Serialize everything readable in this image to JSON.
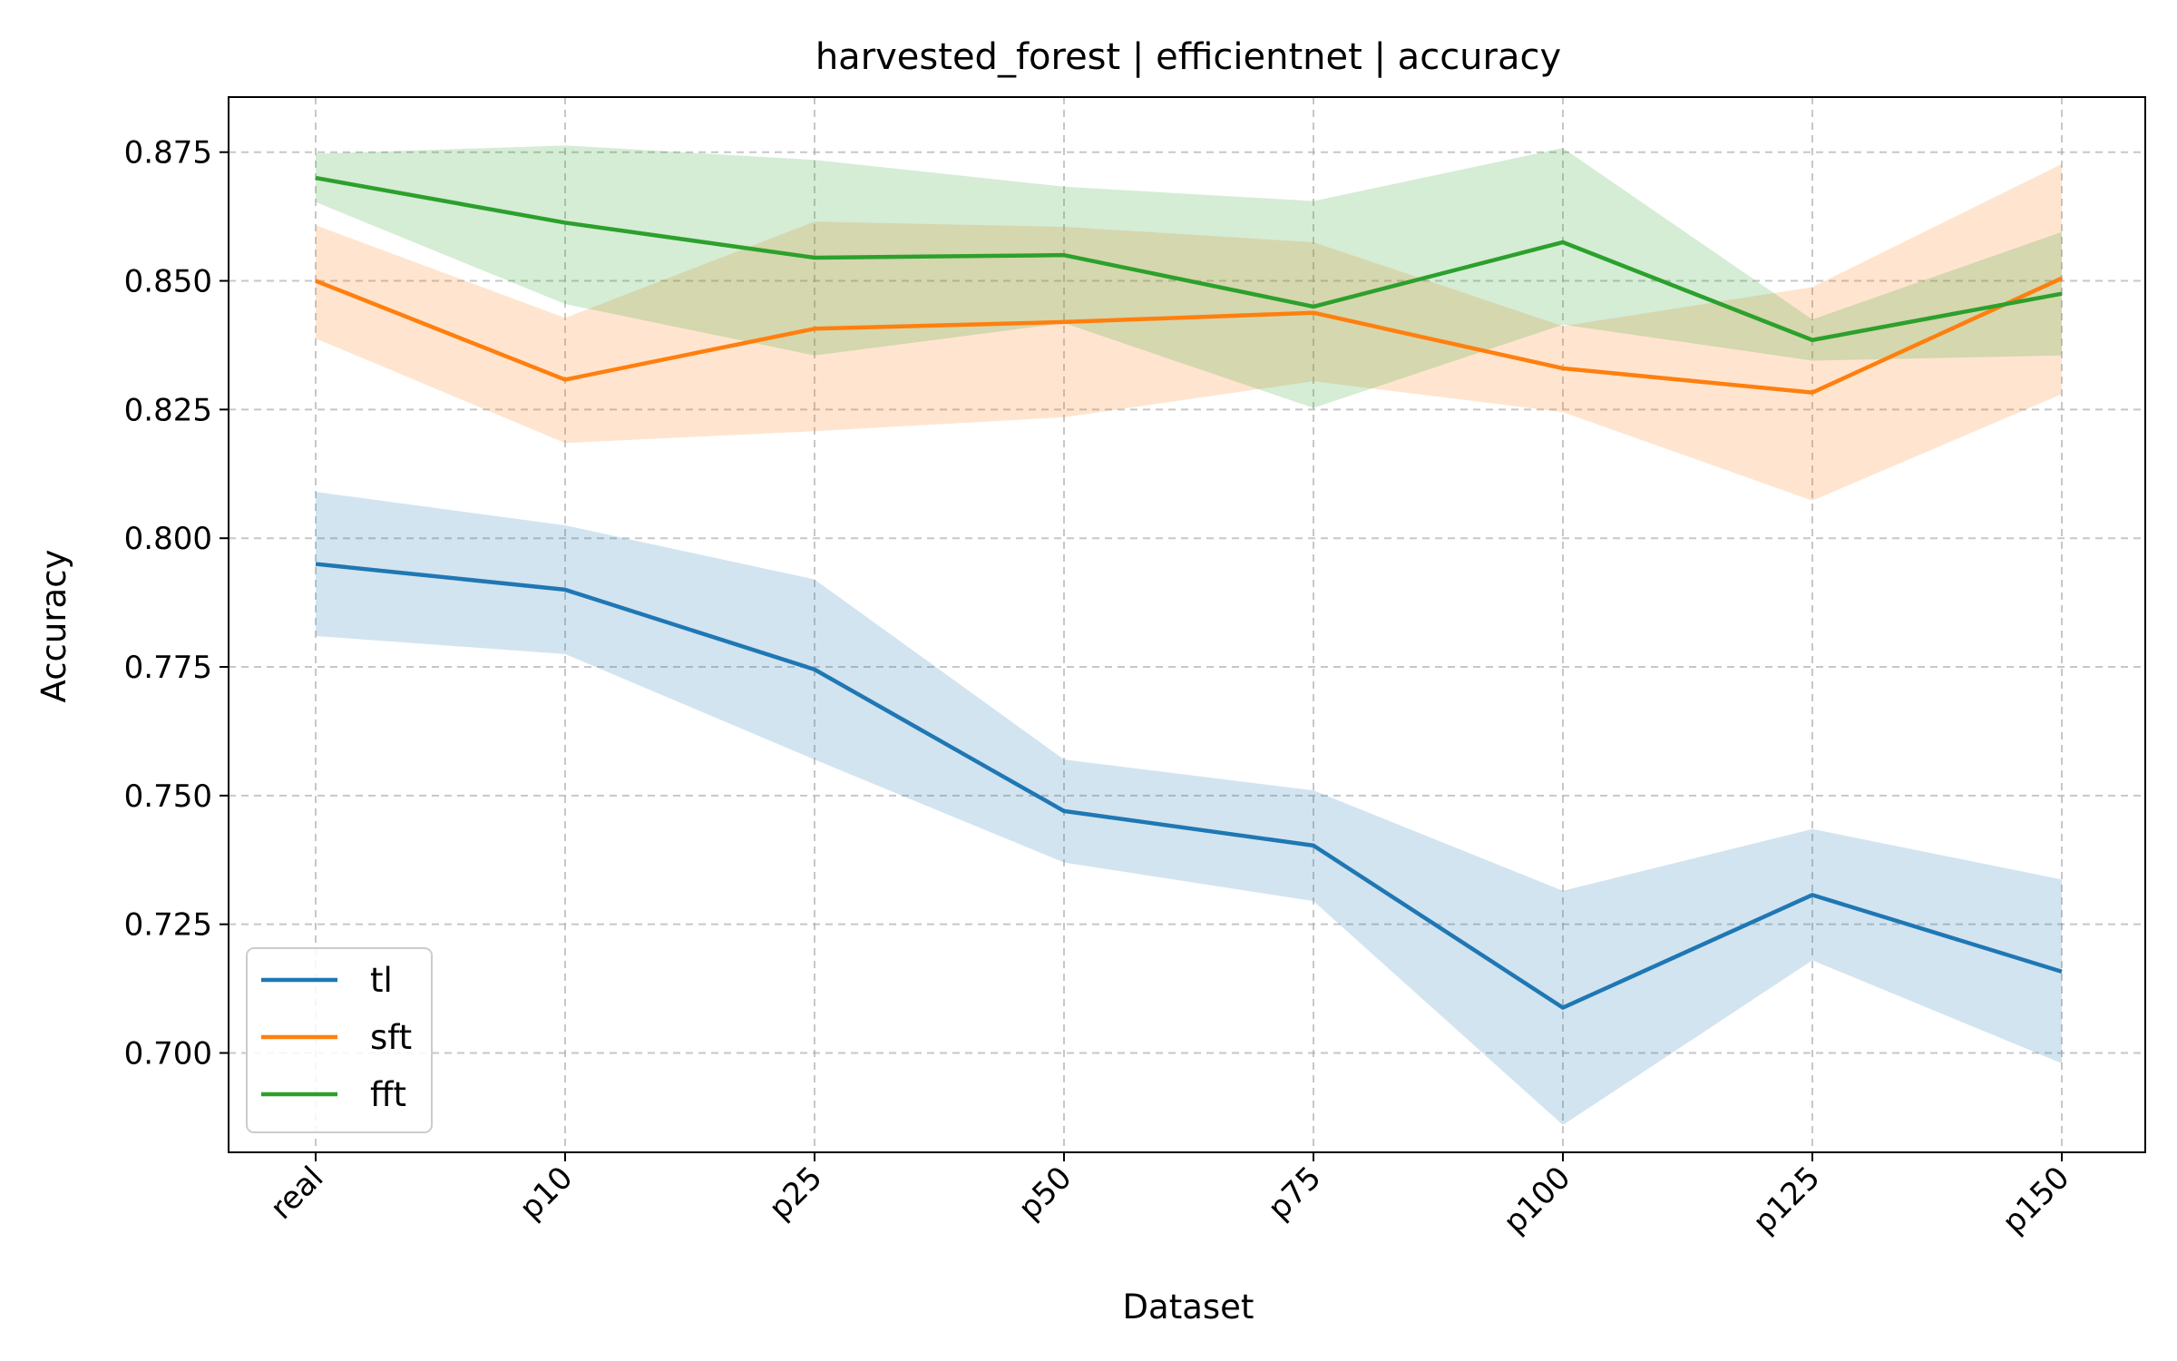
{
  "chart_data": {
    "type": "line",
    "title": "harvested_forest | efficientnet | accuracy",
    "xlabel": "Dataset",
    "ylabel": "Accuracy",
    "categories": [
      "real",
      "p10",
      "p25",
      "p50",
      "p75",
      "p100",
      "p125",
      "p150"
    ],
    "ylim": [
      0.6807,
      0.8857
    ],
    "yticks": [
      0.7,
      0.725,
      0.75,
      0.775,
      0.8,
      0.825,
      0.85,
      0.875
    ],
    "ytick_labels": [
      "0.700",
      "0.725",
      "0.750",
      "0.775",
      "0.800",
      "0.825",
      "0.850",
      "0.875"
    ],
    "grid": true,
    "legend_position": "lower-left",
    "series": [
      {
        "name": "tl",
        "color": "#1f77b4",
        "values": [
          0.795,
          0.79,
          0.7745,
          0.747,
          0.7403,
          0.7088,
          0.7307,
          0.7158
        ],
        "lower": [
          0.781,
          0.7775,
          0.757,
          0.737,
          0.7295,
          0.686,
          0.718,
          0.698
        ],
        "upper": [
          0.809,
          0.8025,
          0.792,
          0.757,
          0.751,
          0.7315,
          0.7435,
          0.7337
        ]
      },
      {
        "name": "sft",
        "color": "#ff7f0e",
        "values": [
          0.85,
          0.8308,
          0.8407,
          0.842,
          0.8438,
          0.833,
          0.8283,
          0.8505
        ],
        "lower": [
          0.8388,
          0.8185,
          0.8208,
          0.8235,
          0.8305,
          0.8245,
          0.8073,
          0.828
        ],
        "upper": [
          0.8608,
          0.8428,
          0.8615,
          0.8605,
          0.8575,
          0.8412,
          0.8488,
          0.8727
        ]
      },
      {
        "name": "fft",
        "color": "#2ca02c",
        "values": [
          0.87,
          0.8613,
          0.8545,
          0.855,
          0.845,
          0.8575,
          0.8385,
          0.8475
        ],
        "lower": [
          0.8653,
          0.8455,
          0.8355,
          0.8418,
          0.8253,
          0.8415,
          0.8345,
          0.8355
        ],
        "upper": [
          0.8747,
          0.8763,
          0.8735,
          0.8683,
          0.8655,
          0.8758,
          0.8425,
          0.8595
        ]
      }
    ]
  }
}
